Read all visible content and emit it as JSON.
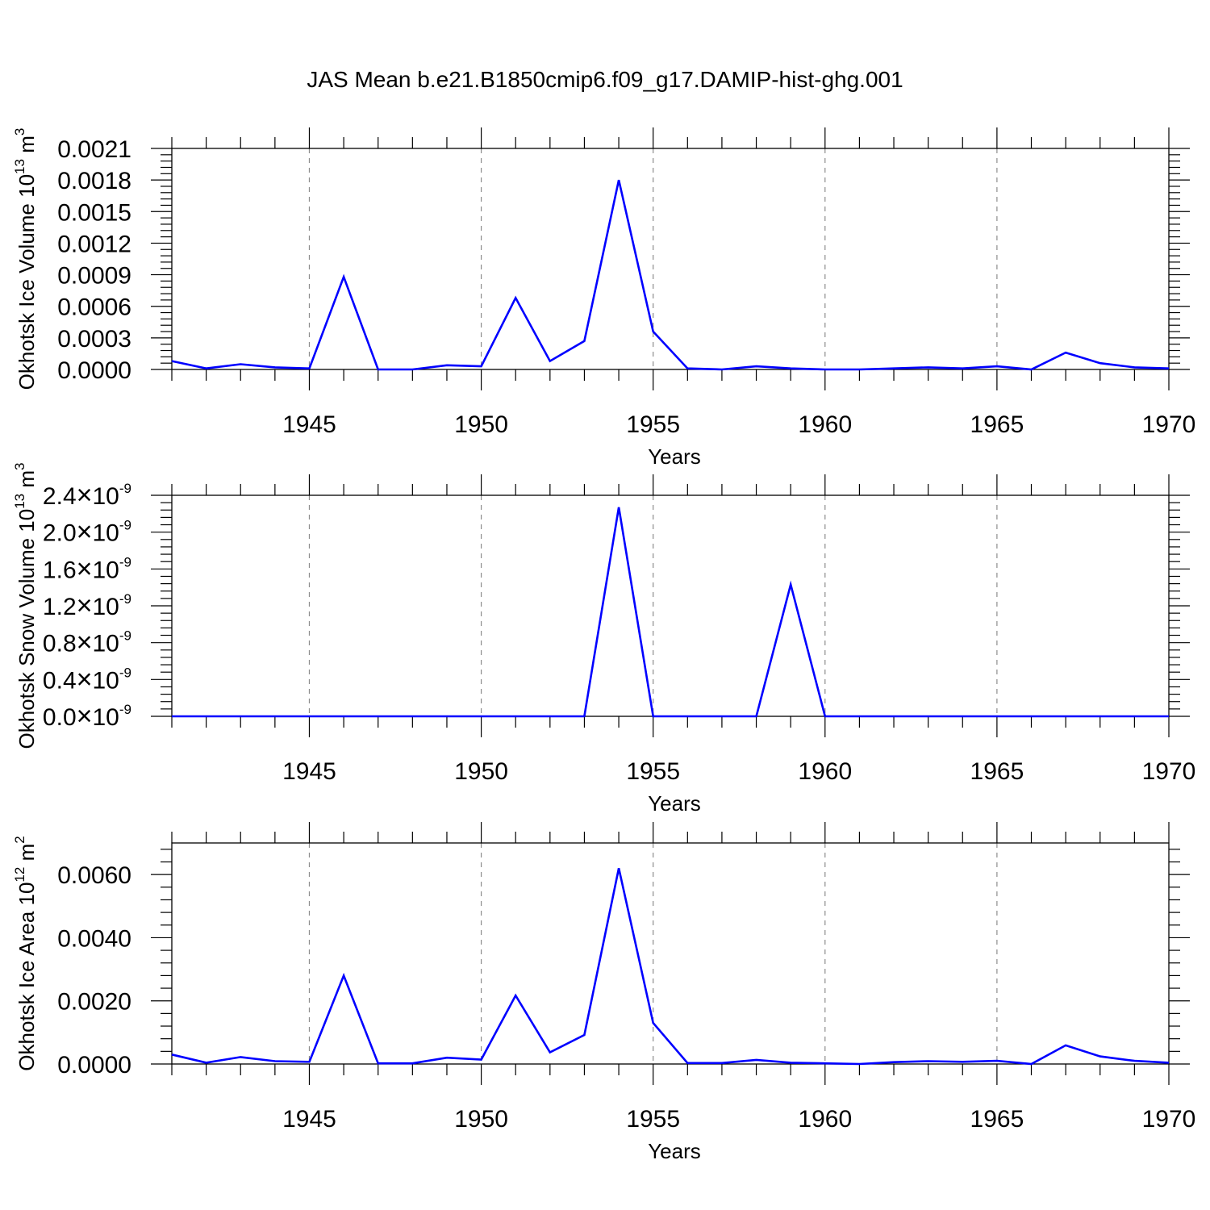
{
  "title": "JAS Mean b.e21.B1850cmip6.f09_g17.DAMIP-hist-ghg.001",
  "colors": {
    "line": "#0000ff",
    "axis": "#000000",
    "grid": "#8c8c8c"
  },
  "chart_data": [
    {
      "type": "line",
      "title": "JAS Mean b.e21.B1850cmip6.f09_g17.DAMIP-hist-ghg.001",
      "xlabel": "Years",
      "ylabel": {
        "prefix": "Okhotsk Ice Volume 10",
        "exp": "13",
        "unit": " m",
        "unit_exp": "3"
      },
      "xlim": [
        1941,
        1970
      ],
      "ylim": [
        0,
        0.0021
      ],
      "xticks": [
        "1945",
        "1950",
        "1955",
        "1960",
        "1965",
        "1970"
      ],
      "yticks": [
        "0.0000",
        "0.0003",
        "0.0006",
        "0.0009",
        "0.0012",
        "0.0015",
        "0.0018",
        "0.0021"
      ],
      "grid": "vertical dashed at major x ticks",
      "x": [
        1941,
        1942,
        1943,
        1944,
        1945,
        1946,
        1947,
        1948,
        1949,
        1950,
        1951,
        1952,
        1953,
        1954,
        1955,
        1956,
        1957,
        1958,
        1959,
        1960,
        1961,
        1962,
        1963,
        1964,
        1965,
        1966,
        1967,
        1968,
        1969,
        1970
      ],
      "values": [
        8e-05,
        1e-05,
        5e-05,
        2e-05,
        1e-05,
        0.00088,
        0.0,
        0.0,
        4e-05,
        3e-05,
        0.00068,
        8e-05,
        0.00027,
        0.0018,
        0.00036,
        1e-05,
        0.0,
        3e-05,
        1e-05,
        0.0,
        0.0,
        1e-05,
        2e-05,
        1e-05,
        3e-05,
        0.0,
        0.00016,
        6e-05,
        2e-05,
        1e-05
      ]
    },
    {
      "type": "line",
      "xlabel": "Years",
      "ylabel": {
        "prefix": "Okhotsk Snow Volume 10",
        "exp": "13",
        "unit": " m",
        "unit_exp": "3"
      },
      "xlim": [
        1941,
        1970
      ],
      "ylim": [
        0,
        2.4e-09
      ],
      "xticks": [
        "1945",
        "1950",
        "1955",
        "1960",
        "1965",
        "1970"
      ],
      "yticks": [
        {
          "mant": "0.0",
          "exp": "-9"
        },
        {
          "mant": "0.4",
          "exp": "-9"
        },
        {
          "mant": "0.8",
          "exp": "-9"
        },
        {
          "mant": "1.2",
          "exp": "-9"
        },
        {
          "mant": "1.6",
          "exp": "-9"
        },
        {
          "mant": "2.0",
          "exp": "-9"
        },
        {
          "mant": "2.4",
          "exp": "-9"
        }
      ],
      "times_sign": "×10",
      "grid": "vertical dashed at major x ticks",
      "x": [
        1941,
        1942,
        1943,
        1944,
        1945,
        1946,
        1947,
        1948,
        1949,
        1950,
        1951,
        1952,
        1953,
        1954,
        1955,
        1956,
        1957,
        1958,
        1959,
        1960,
        1961,
        1962,
        1963,
        1964,
        1965,
        1966,
        1967,
        1968,
        1969,
        1970
      ],
      "values": [
        0,
        0,
        0,
        0,
        0,
        0,
        0,
        0,
        0,
        0,
        0,
        0,
        0,
        2.27e-09,
        0,
        0,
        0,
        0,
        1.43e-09,
        0,
        0,
        0,
        0,
        0,
        0,
        0,
        0,
        0,
        0,
        0
      ]
    },
    {
      "type": "line",
      "xlabel": "Years",
      "ylabel": {
        "prefix": "Okhotsk Ice Area 10",
        "exp": "12",
        "unit": " m",
        "unit_exp": "2"
      },
      "xlim": [
        1941,
        1970
      ],
      "ylim": [
        0,
        0.007
      ],
      "xticks": [
        "1945",
        "1950",
        "1955",
        "1960",
        "1965",
        "1970"
      ],
      "yticks": [
        "0.0000",
        "0.0020",
        "0.0040",
        "0.0060"
      ],
      "ytick_values": [
        0,
        0.002,
        0.004,
        0.006
      ],
      "grid": "vertical dashed at major x ticks",
      "x": [
        1941,
        1942,
        1943,
        1944,
        1945,
        1946,
        1947,
        1948,
        1949,
        1950,
        1951,
        1952,
        1953,
        1954,
        1955,
        1956,
        1957,
        1958,
        1959,
        1960,
        1961,
        1962,
        1963,
        1964,
        1965,
        1966,
        1967,
        1968,
        1969,
        1970
      ],
      "values": [
        0.0003,
        4e-05,
        0.00022,
        9e-05,
        7e-05,
        0.0028,
        2e-05,
        2e-05,
        0.0002,
        0.00014,
        0.00217,
        0.00037,
        0.00092,
        0.0062,
        0.0013,
        3e-05,
        3e-05,
        0.00013,
        4e-05,
        2e-05,
        0.0,
        6e-05,
        9e-05,
        7e-05,
        0.0001,
        0.0,
        0.00059,
        0.00024,
        0.0001,
        4e-05
      ]
    }
  ]
}
